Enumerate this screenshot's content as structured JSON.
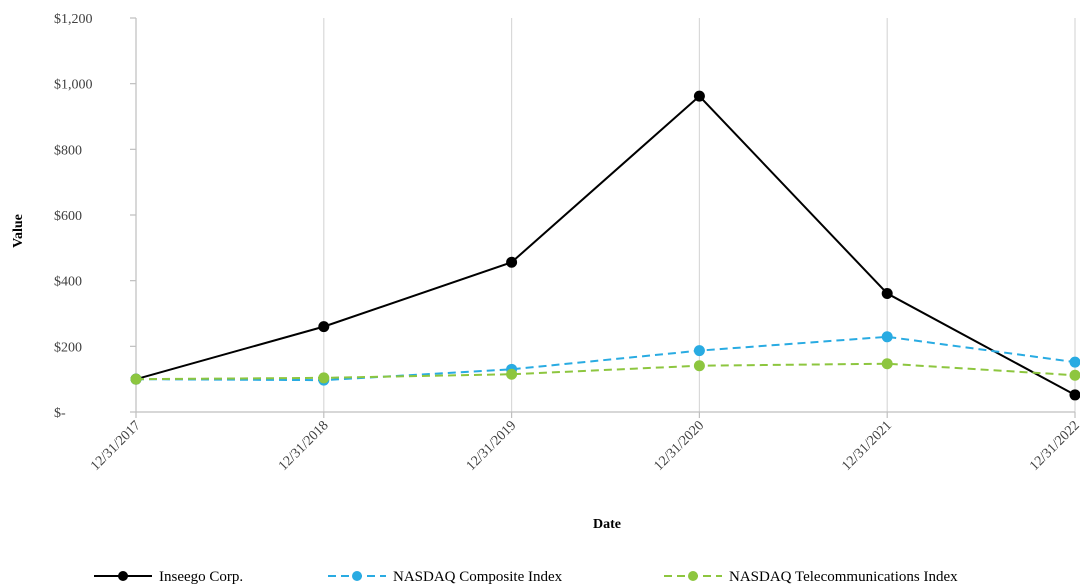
{
  "chart_data": {
    "type": "line",
    "title": "",
    "xlabel": "Date",
    "ylabel": "Value",
    "x": [
      "12/31/2017",
      "12/31/2018",
      "12/31/2019",
      "12/31/2020",
      "12/31/2021",
      "12/31/2022"
    ],
    "ylim": [
      0,
      1200
    ],
    "yticks": [
      0,
      200,
      400,
      600,
      800,
      1000,
      1200
    ],
    "ytick_labels": [
      "$-",
      "$200",
      "$400",
      "$600",
      "$800",
      "$1,000",
      "$1,200"
    ],
    "grid": "vertical",
    "legend": "bottom",
    "series": [
      {
        "name": "Inseego Corp.",
        "values": [
          100,
          260,
          456,
          962,
          361,
          52
        ],
        "color": "#000000",
        "dash": "solid"
      },
      {
        "name": "NASDAQ Composite Index",
        "values": [
          100,
          97,
          130,
          187,
          229,
          152
        ],
        "color": "#29ABE2",
        "dash": "dashed"
      },
      {
        "name": "NASDAQ Telecommunications Index",
        "values": [
          100,
          104,
          115,
          141,
          147,
          112
        ],
        "color": "#8DC63F",
        "dash": "dashed"
      }
    ]
  }
}
